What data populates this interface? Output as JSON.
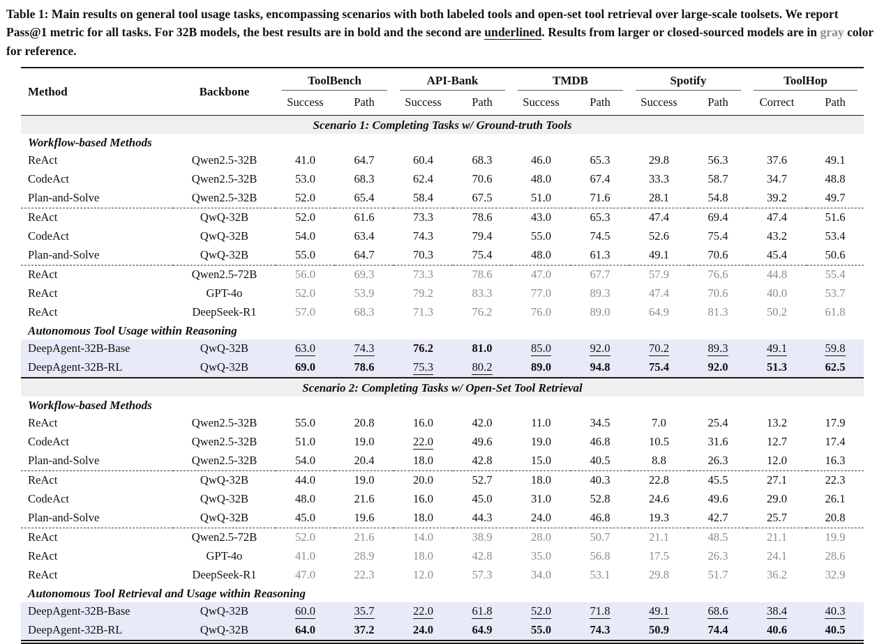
{
  "caption": {
    "segments": [
      {
        "text": "Table 1: Main results on general tool usage tasks, encompassing scenarios with both labeled tools and open-set tool retrieval over large-scale toolsets. We report Pass@1 metric for all tasks. For 32B models, the best results are in bold and the second are ",
        "style": "plain"
      },
      {
        "text": "underlined",
        "style": "underline"
      },
      {
        "text": ". Results from larger or closed-sourced models are in ",
        "style": "plain"
      },
      {
        "text": "gray",
        "style": "gray"
      },
      {
        "text": " color for reference.",
        "style": "plain"
      }
    ]
  },
  "colors": {
    "highlight_row": "#e8eaf8",
    "scenario_band": "#efefef",
    "gray_text": "#8b8b8b"
  },
  "table": {
    "header": {
      "method": "Method",
      "backbone": "Backbone",
      "groups": [
        {
          "label": "ToolBench",
          "subs": [
            "Success",
            "Path"
          ]
        },
        {
          "label": "API-Bank",
          "subs": [
            "Success",
            "Path"
          ]
        },
        {
          "label": "TMDB",
          "subs": [
            "Success",
            "Path"
          ]
        },
        {
          "label": "Spotify",
          "subs": [
            "Success",
            "Path"
          ]
        },
        {
          "label": "ToolHop",
          "subs": [
            "Correct",
            "Path"
          ]
        }
      ]
    },
    "sections": [
      {
        "scenario": "Scenario 1: Completing Tasks w/ Ground-truth Tools",
        "blocks": [
          {
            "subheader": "Workflow-based Methods",
            "rows": [
              {
                "method": "ReAct",
                "backbone": "Qwen2.5-32B",
                "values": [
                  "41.0",
                  "64.7",
                  "60.4",
                  "68.3",
                  "46.0",
                  "65.3",
                  "29.8",
                  "56.3",
                  "37.6",
                  "49.1"
                ]
              },
              {
                "method": "CodeAct",
                "backbone": "Qwen2.5-32B",
                "values": [
                  "53.0",
                  "68.3",
                  "62.4",
                  "70.6",
                  "48.0",
                  "67.4",
                  "33.3",
                  "58.7",
                  "34.7",
                  "48.8"
                ]
              },
              {
                "method": "Plan-and-Solve",
                "backbone": "Qwen2.5-32B",
                "values": [
                  "52.0",
                  "65.4",
                  "58.4",
                  "67.5",
                  "51.0",
                  "71.6",
                  "28.1",
                  "54.8",
                  "39.2",
                  "49.7"
                ],
                "dashed_after": true
              },
              {
                "method": "ReAct",
                "backbone": "QwQ-32B",
                "values": [
                  "52.0",
                  "61.6",
                  "73.3",
                  "78.6",
                  "43.0",
                  "65.3",
                  "47.4",
                  "69.4",
                  "47.4",
                  "51.6"
                ]
              },
              {
                "method": "CodeAct",
                "backbone": "QwQ-32B",
                "values": [
                  "54.0",
                  "63.4",
                  "74.3",
                  "79.4",
                  "55.0",
                  "74.5",
                  "52.6",
                  "75.4",
                  "43.2",
                  "53.4"
                ]
              },
              {
                "method": "Plan-and-Solve",
                "backbone": "QwQ-32B",
                "values": [
                  "55.0",
                  "64.7",
                  "70.3",
                  "75.4",
                  "48.0",
                  "61.3",
                  "49.1",
                  "70.6",
                  "45.4",
                  "50.6"
                ],
                "dashed_after": true
              },
              {
                "method": "ReAct",
                "backbone": "Qwen2.5-72B",
                "gray": true,
                "values": [
                  "56.0",
                  "69.3",
                  "73.3",
                  "78.6",
                  "47.0",
                  "67.7",
                  "57.9",
                  "76.6",
                  "44.8",
                  "55.4"
                ]
              },
              {
                "method": "ReAct",
                "backbone": "GPT-4o",
                "gray": true,
                "values": [
                  "52.0",
                  "53.9",
                  "79.2",
                  "83.3",
                  "77.0",
                  "89.3",
                  "47.4",
                  "70.6",
                  "40.0",
                  "53.7"
                ]
              },
              {
                "method": "ReAct",
                "backbone": "DeepSeek-R1",
                "gray": true,
                "values": [
                  "57.0",
                  "68.3",
                  "71.3",
                  "76.2",
                  "76.0",
                  "89.0",
                  "64.9",
                  "81.3",
                  "50.2",
                  "61.8"
                ]
              }
            ]
          },
          {
            "subheader": "Autonomous Tool Usage within Reasoning",
            "rows": [
              {
                "method": "DeepAgent-32B-Base",
                "backbone": "QwQ-32B",
                "highlight": true,
                "values": [
                  "63.0",
                  "74.3",
                  "76.2",
                  "81.0",
                  "85.0",
                  "92.0",
                  "70.2",
                  "89.3",
                  "49.1",
                  "59.8"
                ],
                "marks": [
                  "u",
                  "u",
                  "b",
                  "b",
                  "u",
                  "u",
                  "u",
                  "u",
                  "u",
                  "u"
                ]
              },
              {
                "method": "DeepAgent-32B-RL",
                "backbone": "QwQ-32B",
                "highlight": true,
                "values": [
                  "69.0",
                  "78.6",
                  "75.3",
                  "80.2",
                  "89.0",
                  "94.8",
                  "75.4",
                  "92.0",
                  "51.3",
                  "62.5"
                ],
                "marks": [
                  "b",
                  "b",
                  "u",
                  "u",
                  "b",
                  "b",
                  "b",
                  "b",
                  "b",
                  "b"
                ],
                "thick_after": true
              }
            ]
          }
        ]
      },
      {
        "scenario": "Scenario 2: Completing Tasks w/ Open-Set Tool Retrieval",
        "blocks": [
          {
            "subheader": "Workflow-based Methods",
            "rows": [
              {
                "method": "ReAct",
                "backbone": "Qwen2.5-32B",
                "values": [
                  "55.0",
                  "20.8",
                  "16.0",
                  "42.0",
                  "11.0",
                  "34.5",
                  "7.0",
                  "25.4",
                  "13.2",
                  "17.9"
                ]
              },
              {
                "method": "CodeAct",
                "backbone": "Qwen2.5-32B",
                "values": [
                  "51.0",
                  "19.0",
                  "22.0",
                  "49.6",
                  "19.0",
                  "46.8",
                  "10.5",
                  "31.6",
                  "12.7",
                  "17.4"
                ],
                "marks": [
                  "",
                  "",
                  "u",
                  "",
                  "",
                  "",
                  "",
                  "",
                  "",
                  ""
                ]
              },
              {
                "method": "Plan-and-Solve",
                "backbone": "Qwen2.5-32B",
                "values": [
                  "54.0",
                  "20.4",
                  "18.0",
                  "42.8",
                  "15.0",
                  "40.5",
                  "8.8",
                  "26.3",
                  "12.0",
                  "16.3"
                ],
                "dashed_after": true
              },
              {
                "method": "ReAct",
                "backbone": "QwQ-32B",
                "values": [
                  "44.0",
                  "19.0",
                  "20.0",
                  "52.7",
                  "18.0",
                  "40.3",
                  "22.8",
                  "45.5",
                  "27.1",
                  "22.3"
                ]
              },
              {
                "method": "CodeAct",
                "backbone": "QwQ-32B",
                "values": [
                  "48.0",
                  "21.6",
                  "16.0",
                  "45.0",
                  "31.0",
                  "52.8",
                  "24.6",
                  "49.6",
                  "29.0",
                  "26.1"
                ]
              },
              {
                "method": "Plan-and-Solve",
                "backbone": "QwQ-32B",
                "values": [
                  "45.0",
                  "19.6",
                  "18.0",
                  "44.3",
                  "24.0",
                  "46.8",
                  "19.3",
                  "42.7",
                  "25.7",
                  "20.8"
                ],
                "dashed_after": true
              },
              {
                "method": "ReAct",
                "backbone": "Qwen2.5-72B",
                "gray": true,
                "values": [
                  "52.0",
                  "21.6",
                  "14.0",
                  "38.9",
                  "28.0",
                  "50.7",
                  "21.1",
                  "48.5",
                  "21.1",
                  "19.9"
                ]
              },
              {
                "method": "ReAct",
                "backbone": "GPT-4o",
                "gray": true,
                "values": [
                  "41.0",
                  "28.9",
                  "18.0",
                  "42.8",
                  "35.0",
                  "56.8",
                  "17.5",
                  "26.3",
                  "24.1",
                  "28.6"
                ]
              },
              {
                "method": "ReAct",
                "backbone": "DeepSeek-R1",
                "gray": true,
                "values": [
                  "47.0",
                  "22.3",
                  "12.0",
                  "57.3",
                  "34.0",
                  "53.1",
                  "29.8",
                  "51.7",
                  "36.2",
                  "32.9"
                ]
              }
            ]
          },
          {
            "subheader": "Autonomous Tool Retrieval and Usage within Reasoning",
            "rows": [
              {
                "method": "DeepAgent-32B-Base",
                "backbone": "QwQ-32B",
                "highlight": true,
                "values": [
                  "60.0",
                  "35.7",
                  "22.0",
                  "61.8",
                  "52.0",
                  "71.8",
                  "49.1",
                  "68.6",
                  "38.4",
                  "40.3"
                ],
                "marks": [
                  "u",
                  "u",
                  "u",
                  "u",
                  "u",
                  "u",
                  "u",
                  "u",
                  "u",
                  "u"
                ]
              },
              {
                "method": "DeepAgent-32B-RL",
                "backbone": "QwQ-32B",
                "highlight": true,
                "values": [
                  "64.0",
                  "37.2",
                  "24.0",
                  "64.9",
                  "55.0",
                  "74.3",
                  "50.9",
                  "74.4",
                  "40.6",
                  "40.5"
                ],
                "marks": [
                  "b",
                  "b",
                  "b",
                  "b",
                  "b",
                  "b",
                  "b",
                  "b",
                  "b",
                  "b"
                ]
              }
            ]
          }
        ]
      }
    ]
  }
}
